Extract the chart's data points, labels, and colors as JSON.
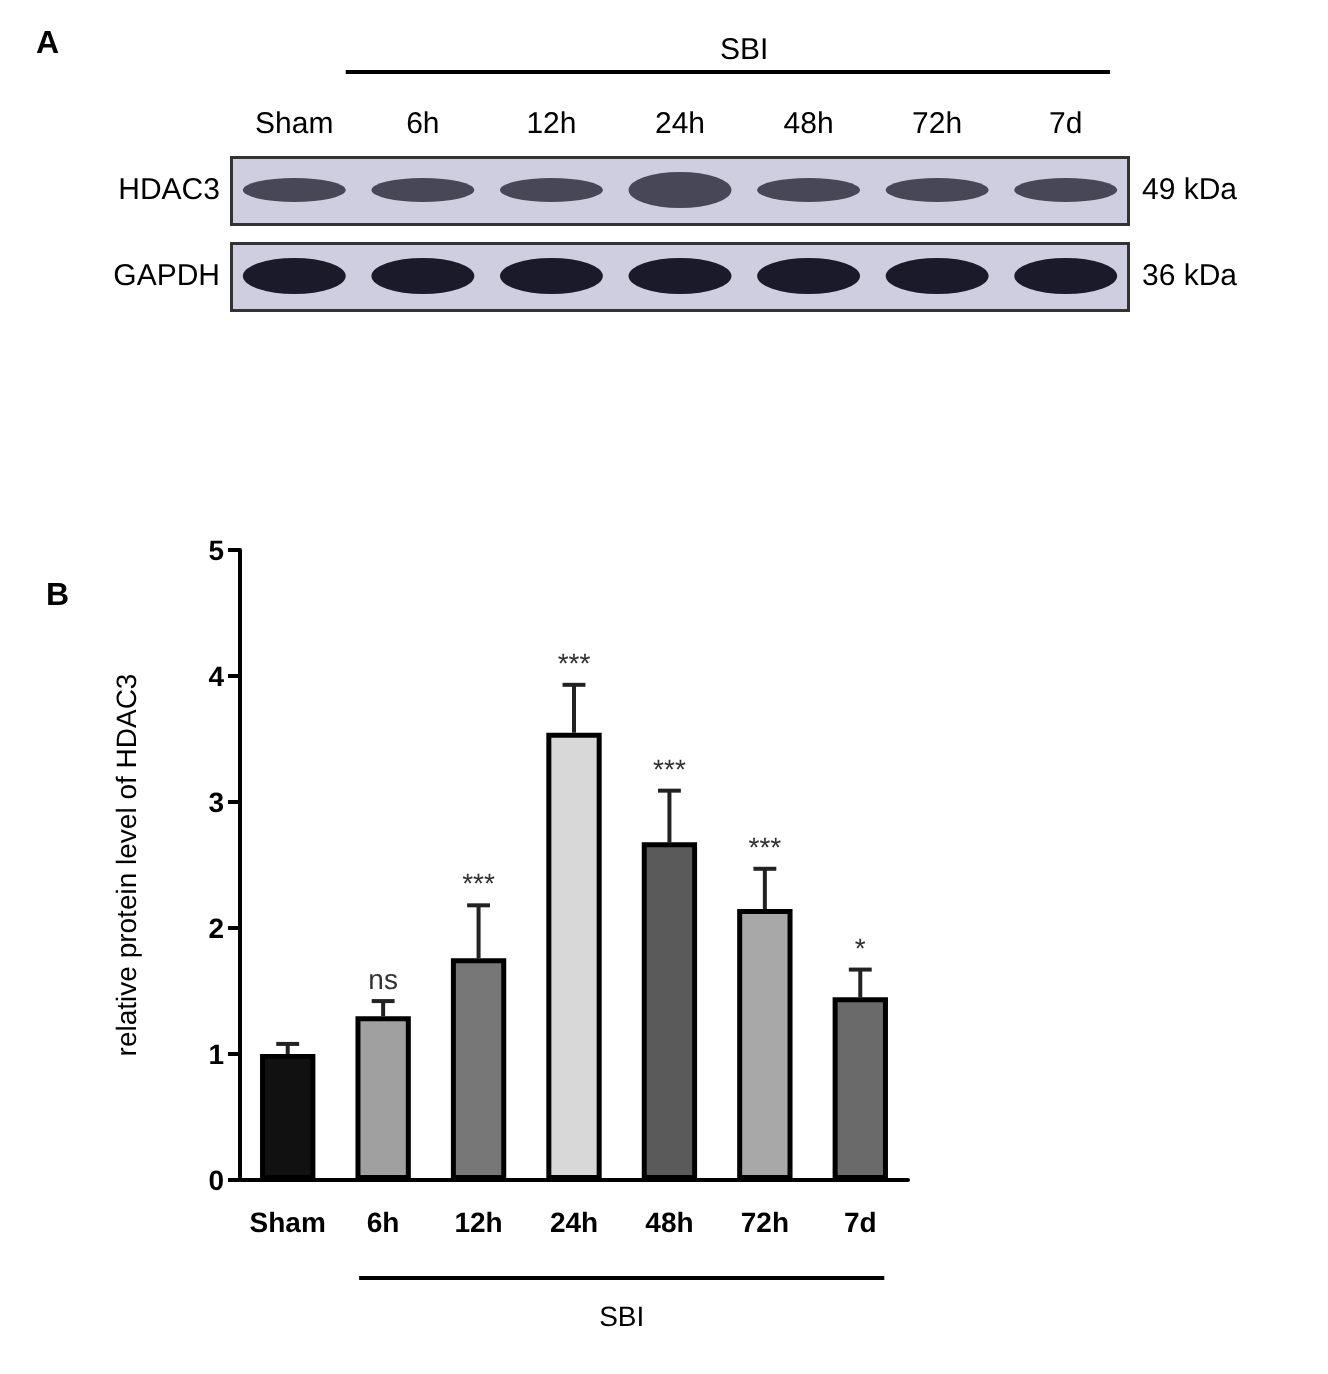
{
  "chart_data": [
    {
      "type": "other",
      "title": "A",
      "categories": [
        "Sham",
        "6h",
        "12h",
        "24h",
        "48h",
        "72h",
        "7d"
      ],
      "y_categories": [
        "HDAC3",
        "GAPDH"
      ],
      "y2_categories": [
        "49 kDa",
        "36 kDa"
      ],
      "annotations": [
        "SBI"
      ]
    },
    {
      "type": "bar",
      "title": "B",
      "ylabel": "relative protein level of HDAC3",
      "categories": [
        "Sham",
        "6h",
        "12h",
        "24h",
        "48h",
        "72h",
        "7d"
      ],
      "values": [
        1.0,
        1.3,
        1.76,
        3.55,
        2.68,
        2.15,
        1.45
      ],
      "colors": [
        "#111111",
        "#a0a0a0",
        "#777777",
        "#d8d8d8",
        "#5a5a5a",
        "#a8a8a8",
        "#6a6a6a"
      ],
      "errors": [
        [
          1.0,
          1.08
        ],
        [
          1.3,
          1.42
        ],
        [
          1.76,
          2.18
        ],
        [
          3.55,
          3.93
        ],
        [
          2.68,
          3.09
        ],
        [
          2.15,
          2.47
        ],
        [
          1.45,
          1.67
        ]
      ],
      "ylim": [
        0,
        5
      ],
      "yticks": [
        0,
        1,
        2,
        3,
        4,
        5
      ],
      "grid": false,
      "annotations": [
        {
          "text": "ns",
          "x": "6h",
          "y": 1.42
        },
        {
          "text": "***",
          "x": "12h",
          "y": 2.18
        },
        {
          "text": "***",
          "x": "24h",
          "y": 3.93
        },
        {
          "text": "***",
          "x": "48h",
          "y": 3.09
        },
        {
          "text": "***",
          "x": "72h",
          "y": 2.47
        },
        {
          "text": "*",
          "x": "7d",
          "y": 1.67
        },
        "SBI"
      ]
    }
  ]
}
